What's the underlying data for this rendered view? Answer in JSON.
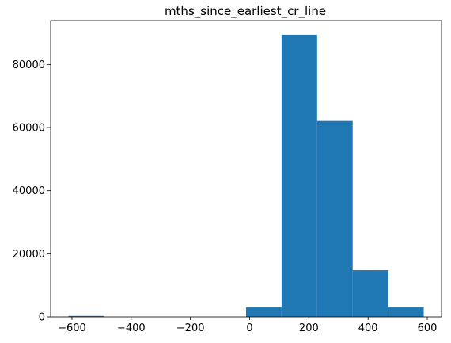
{
  "chart_data": {
    "type": "bar",
    "title": "mths_since_earliest_cr_line",
    "xlabel": "",
    "ylabel": "",
    "color": "#1f77b4",
    "bins": [
      {
        "x0": -612,
        "x1": -492,
        "count": 300
      },
      {
        "x0": -492,
        "x1": -372,
        "count": 0
      },
      {
        "x0": -372,
        "x1": -252,
        "count": 0
      },
      {
        "x0": -252,
        "x1": -132,
        "count": 0
      },
      {
        "x0": -132,
        "x1": -12,
        "count": 0
      },
      {
        "x0": -12,
        "x1": 108,
        "count": 3000
      },
      {
        "x0": 108,
        "x1": 228,
        "count": 89400
      },
      {
        "x0": 228,
        "x1": 348,
        "count": 62100
      },
      {
        "x0": 348,
        "x1": 468,
        "count": 14800
      },
      {
        "x0": 468,
        "x1": 588,
        "count": 3000
      }
    ],
    "xlim": [
      -672,
      648
    ],
    "ylim": [
      0,
      93900
    ],
    "xticks": [
      -600,
      -400,
      -200,
      0,
      200,
      400,
      600
    ],
    "xtick_labels": [
      "−600",
      "−400",
      "−200",
      "0",
      "200",
      "400",
      "600"
    ],
    "yticks": [
      0,
      20000,
      40000,
      60000,
      80000
    ],
    "ytick_labels": [
      "0",
      "20000",
      "40000",
      "60000",
      "80000"
    ],
    "grid": false,
    "legend": "none"
  }
}
